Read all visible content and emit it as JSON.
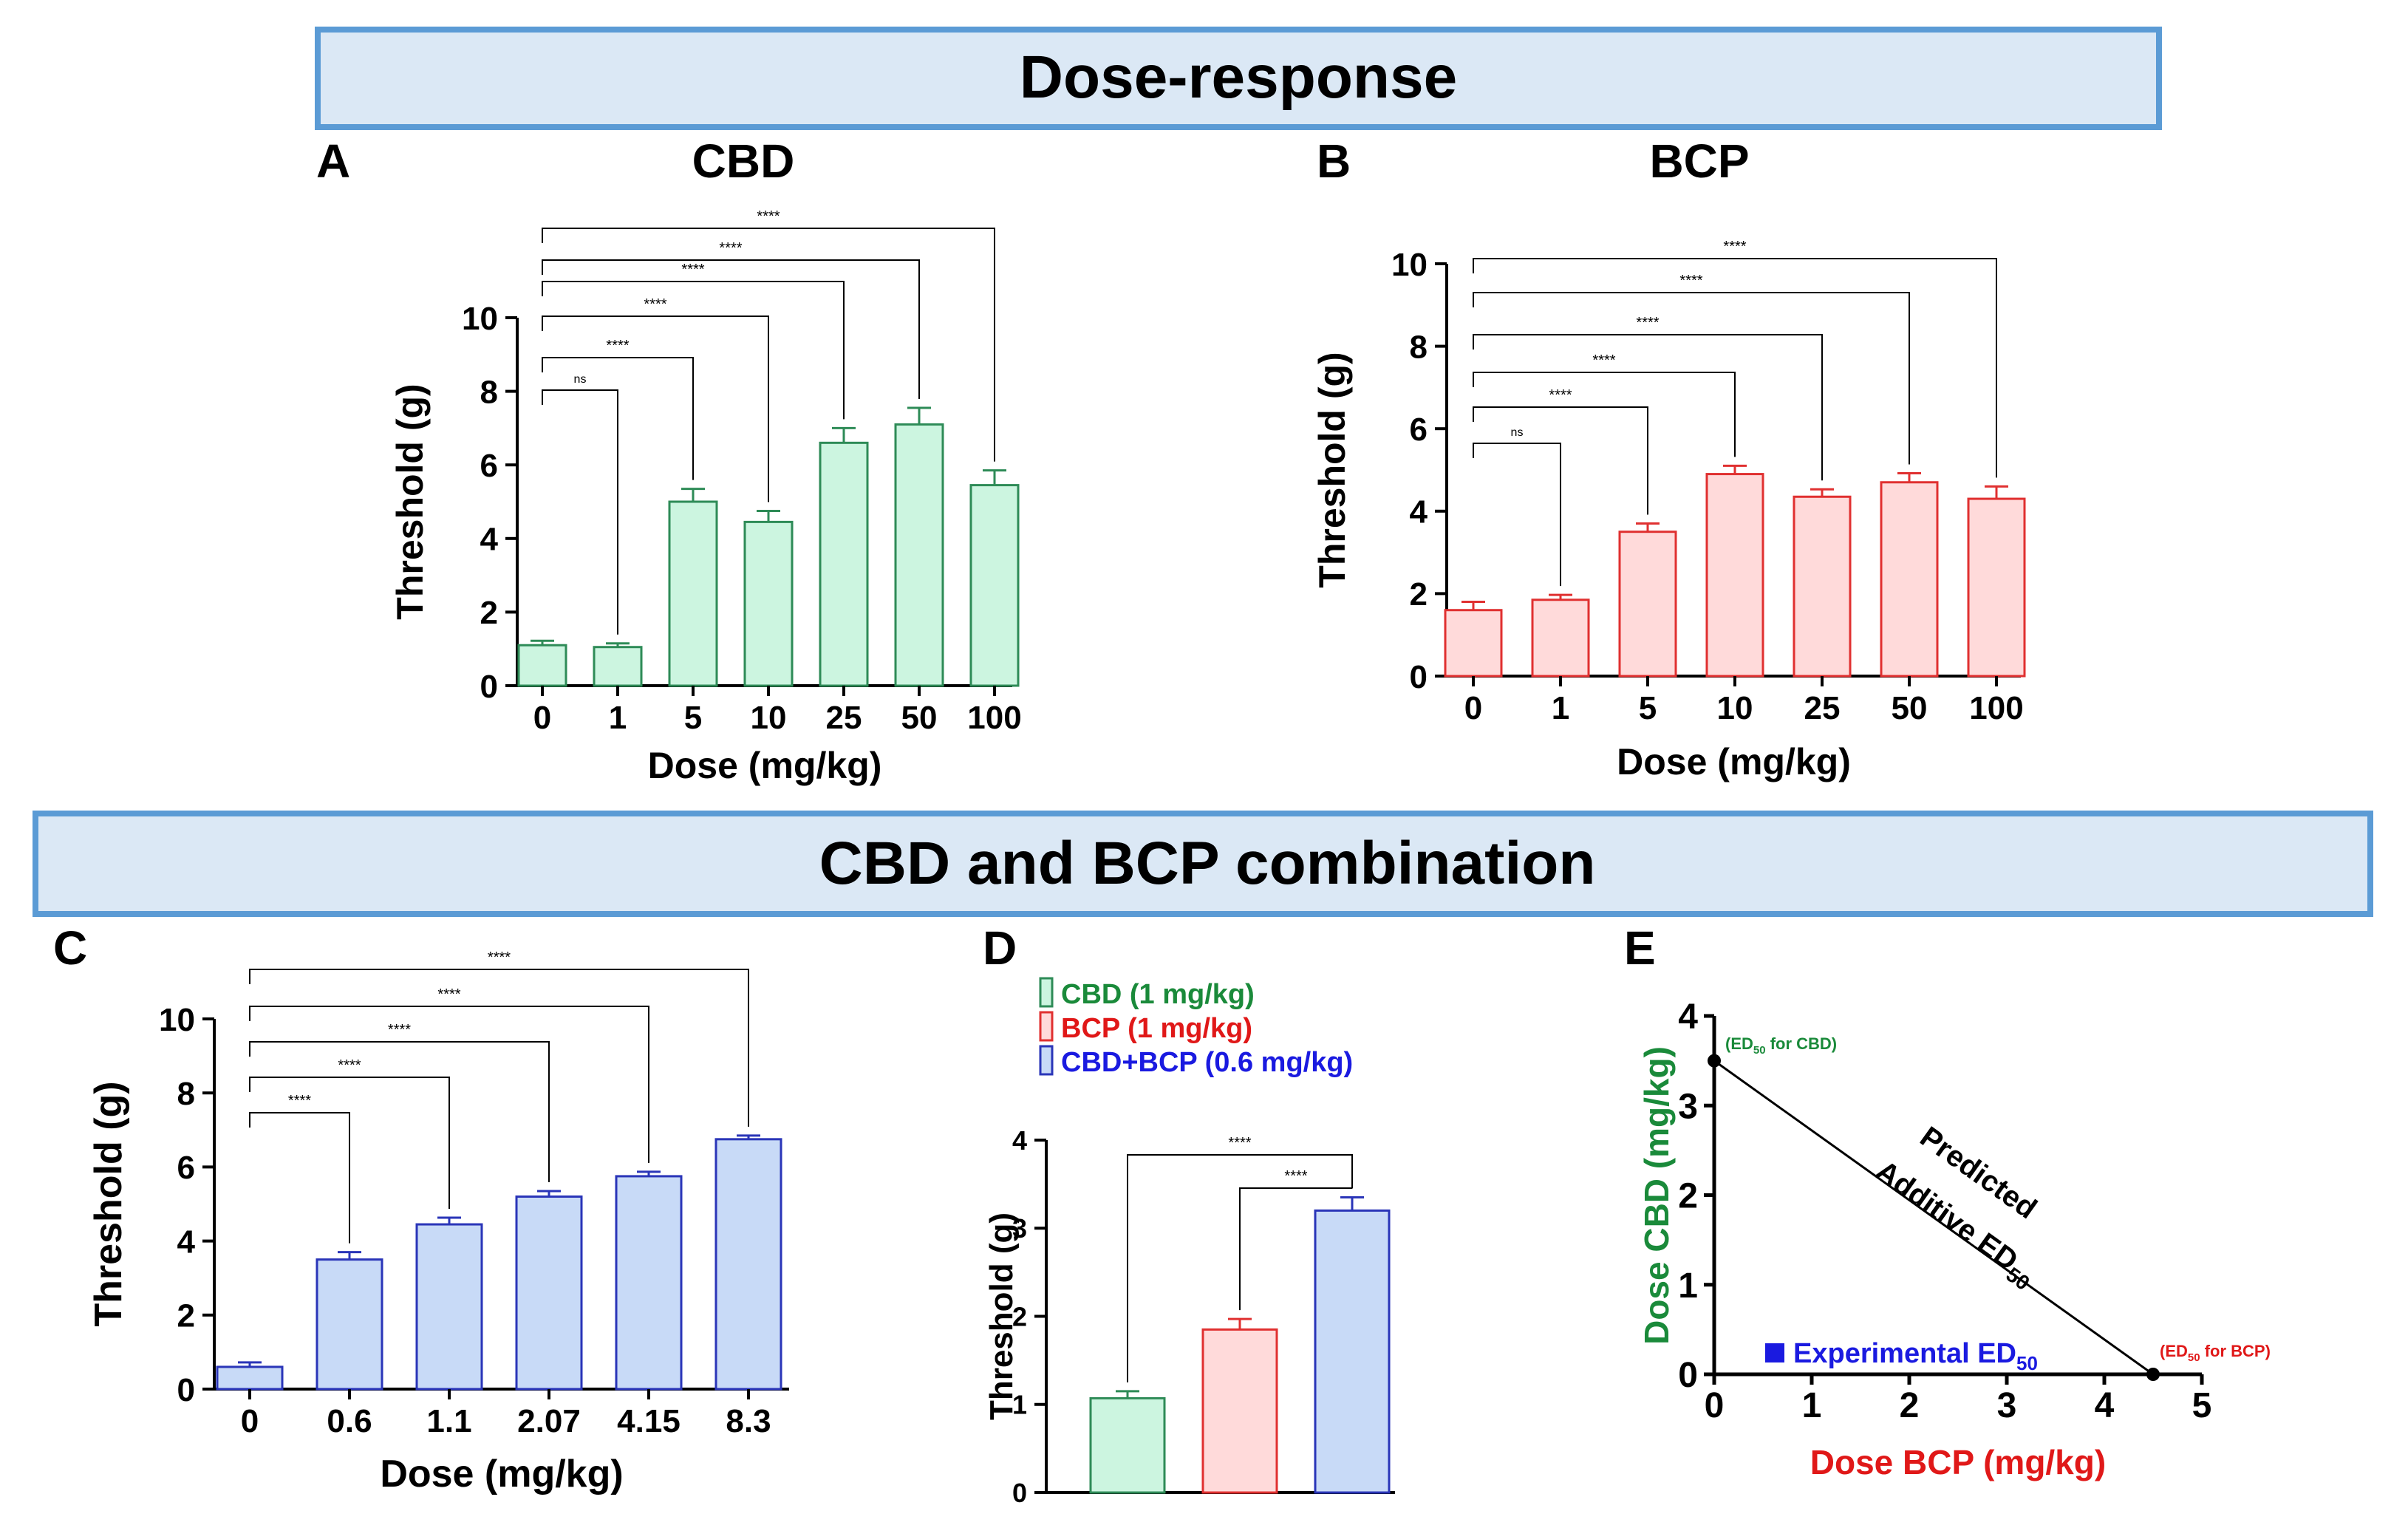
{
  "headers": {
    "top": "Dose-response",
    "bottom": "CBD and BCP combination"
  },
  "colors": {
    "header_fill": "#dbe8f5",
    "header_border": "#5b9bd5",
    "green_fill": "#ccf5e0",
    "green_stroke": "#2e8b57",
    "red_fill": "#ffdada",
    "red_stroke": "#e03030",
    "blue_fill": "#c8daf7",
    "blue_stroke": "#2a35b8",
    "cbd_label": "#1a8a3a",
    "bcp_label": "#e01818",
    "combo_label": "#1a1ae0"
  },
  "chart_data": [
    {
      "id": "A",
      "type": "bar",
      "panel_letter": "A",
      "title": "CBD",
      "xlabel": "Dose (mg/kg)",
      "ylabel": "Threshold (g)",
      "categories": [
        "0",
        "1",
        "5",
        "10",
        "25",
        "50",
        "100"
      ],
      "values": [
        1.1,
        1.05,
        5.0,
        4.45,
        6.6,
        7.1,
        5.45
      ],
      "errors": [
        0.12,
        0.1,
        0.35,
        0.3,
        0.4,
        0.45,
        0.4
      ],
      "ylim": [
        0,
        10
      ],
      "yticks": [
        "0",
        "2",
        "4",
        "6",
        "8",
        "10"
      ],
      "comparisons": [
        {
          "from": 0,
          "to": 1,
          "label": "ns"
        },
        {
          "from": 0,
          "to": 2,
          "label": "****"
        },
        {
          "from": 0,
          "to": 3,
          "label": "****"
        },
        {
          "from": 0,
          "to": 4,
          "label": "****"
        },
        {
          "from": 0,
          "to": 5,
          "label": "****"
        },
        {
          "from": 0,
          "to": 6,
          "label": "****"
        }
      ]
    },
    {
      "id": "B",
      "type": "bar",
      "panel_letter": "B",
      "title": "BCP",
      "xlabel": "Dose (mg/kg)",
      "ylabel": "Threshold (g)",
      "categories": [
        "0",
        "1",
        "5",
        "10",
        "25",
        "50",
        "100"
      ],
      "values": [
        1.6,
        1.85,
        3.5,
        4.9,
        4.35,
        4.7,
        4.3
      ],
      "errors": [
        0.2,
        0.12,
        0.2,
        0.2,
        0.18,
        0.22,
        0.3
      ],
      "ylim": [
        0,
        10
      ],
      "yticks": [
        "0",
        "2",
        "4",
        "6",
        "8",
        "10"
      ],
      "comparisons": [
        {
          "from": 0,
          "to": 1,
          "label": "ns"
        },
        {
          "from": 0,
          "to": 2,
          "label": "****"
        },
        {
          "from": 0,
          "to": 3,
          "label": "****"
        },
        {
          "from": 0,
          "to": 4,
          "label": "****"
        },
        {
          "from": 0,
          "to": 5,
          "label": "****"
        },
        {
          "from": 0,
          "to": 6,
          "label": "****"
        }
      ]
    },
    {
      "id": "C",
      "type": "bar",
      "panel_letter": "C",
      "xlabel": "Dose (mg/kg)",
      "ylabel": "Threshold (g)",
      "categories": [
        "0",
        "0.6",
        "1.1",
        "2.07",
        "4.15",
        "8.3"
      ],
      "values": [
        0.6,
        3.5,
        4.45,
        5.2,
        5.75,
        6.75
      ],
      "errors": [
        0.12,
        0.2,
        0.18,
        0.15,
        0.12,
        0.1
      ],
      "ylim": [
        0,
        10
      ],
      "yticks": [
        "0",
        "2",
        "4",
        "6",
        "8",
        "10"
      ],
      "comparisons": [
        {
          "from": 0,
          "to": 1,
          "label": "****"
        },
        {
          "from": 0,
          "to": 2,
          "label": "****"
        },
        {
          "from": 0,
          "to": 3,
          "label": "****"
        },
        {
          "from": 0,
          "to": 4,
          "label": "****"
        },
        {
          "from": 0,
          "to": 5,
          "label": "****"
        }
      ]
    },
    {
      "id": "D",
      "type": "bar",
      "panel_letter": "D",
      "ylabel": "Threshold (g)",
      "series": [
        {
          "name": "CBD (1 mg/kg)",
          "value": 1.07,
          "error": 0.08
        },
        {
          "name": "BCP (1 mg/kg)",
          "value": 1.85,
          "error": 0.12
        },
        {
          "name": "CBD+BCP  (0.6 mg/kg)",
          "value": 3.2,
          "error": 0.15
        }
      ],
      "ylim": [
        0,
        4
      ],
      "yticks": [
        "0",
        "1",
        "2",
        "3",
        "4"
      ],
      "comparisons": [
        {
          "from": 0,
          "to": 2,
          "label": "****"
        },
        {
          "from": 1,
          "to": 2,
          "label": "****"
        }
      ]
    },
    {
      "id": "E",
      "type": "scatter",
      "panel_letter": "E",
      "xlabel": "Dose BCP (mg/kg)",
      "ylabel": "Dose CBD (mg/kg)",
      "xlim": [
        0,
        5
      ],
      "ylim": [
        0,
        4
      ],
      "xticks": [
        "0",
        "1",
        "2",
        "3",
        "4",
        "5"
      ],
      "yticks": [
        "0",
        "1",
        "2",
        "3",
        "4"
      ],
      "points": [
        {
          "x": 0,
          "y": 3.5,
          "label": "(ED",
          "sub": "50",
          "label_tail": " for CBD)"
        },
        {
          "x": 4.5,
          "y": 0,
          "label": "(ED",
          "sub": "50",
          "label_tail": " for BCP)"
        }
      ],
      "line_label": [
        "Predicted",
        "Additive ED"
      ],
      "line_label_sub": "50",
      "legend": {
        "label": "Experimental ED",
        "sub": "50"
      }
    }
  ]
}
